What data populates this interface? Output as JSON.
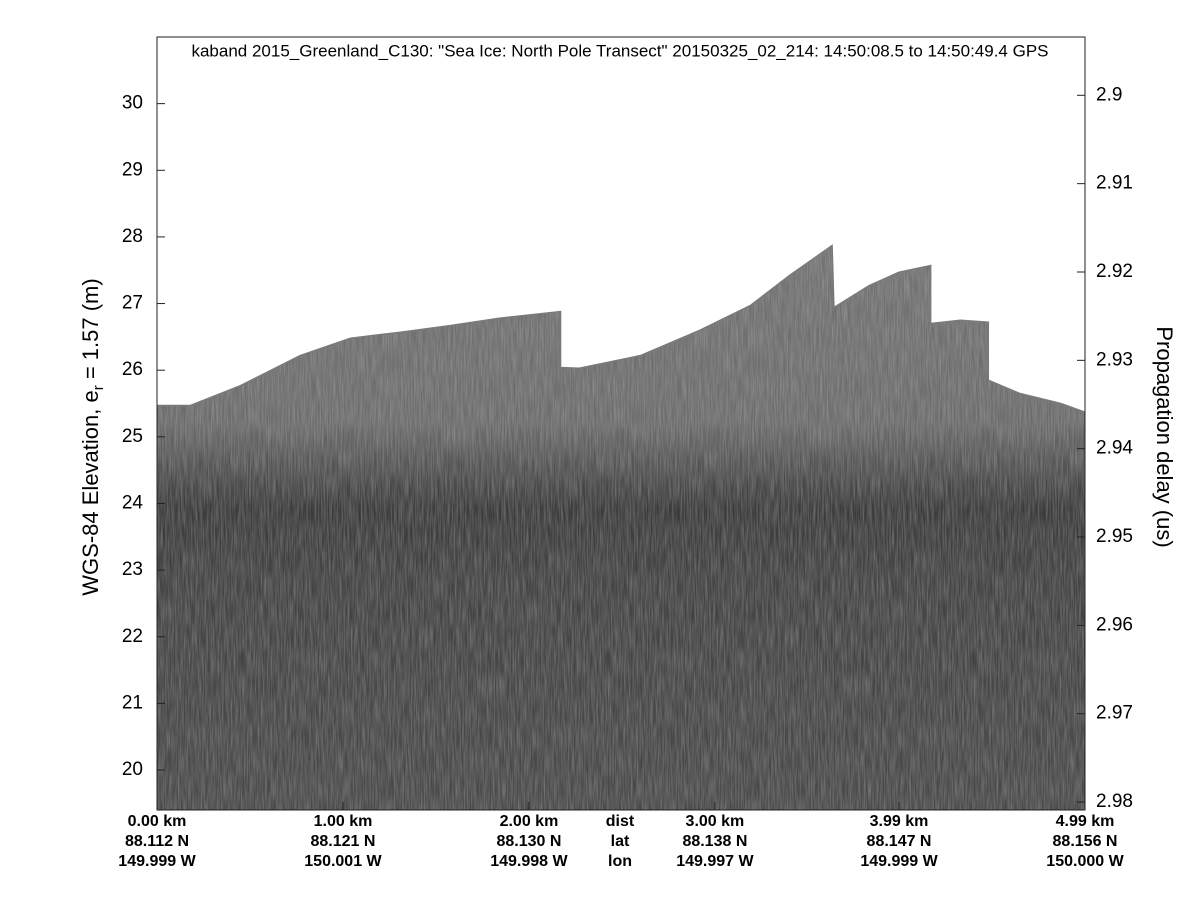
{
  "chart_data": {
    "type": "area",
    "title": "kaband 2015_Greenland_C130: \"Sea Ice: North Pole Transect\"  20150325_02_214: 14:50:08.5 to 14:50:49.4 GPS",
    "ylabel": {
      "text_before": "WGS-84 Elevation, e",
      "subscript": "r",
      "text_after": " = 1.57 (m)"
    },
    "y2label": "Propagation delay (us)",
    "xlim": [
      0,
      4.99
    ],
    "xticks": [
      {
        "value": 0,
        "label": "0.00 km"
      },
      {
        "value": 1,
        "label": "1.00 km"
      },
      {
        "value": 2,
        "label": "2.00 km"
      },
      {
        "value": 3,
        "label": "3.00 km"
      },
      {
        "value": 3.99,
        "label": "3.99 km"
      },
      {
        "value": 4.99,
        "label": "4.99 km"
      }
    ],
    "xtick_lat": [
      "88.112 N",
      "88.121 N",
      "88.130 N",
      "88.138 N",
      "88.147 N",
      "88.156 N"
    ],
    "xtick_lon": [
      "149.999 W",
      "150.001 W",
      "149.998 W",
      "149.997 W",
      "149.999 W",
      "150.000 W"
    ],
    "xtick_row_labels": [
      "dist",
      "lat",
      "lon"
    ],
    "ylim": [
      19.4,
      31.0
    ],
    "yticks": [
      20,
      21,
      22,
      23,
      24,
      25,
      26,
      27,
      28,
      29,
      30
    ],
    "y2lim": [
      2.9809,
      2.8934
    ],
    "y2ticks": [
      2.9,
      2.91,
      2.92,
      2.93,
      2.94,
      2.95,
      2.96,
      2.97,
      2.98
    ],
    "series": [
      {
        "color": "#7a7a7a",
        "x": [
          0,
          0.18,
          0.45,
          0.77,
          1.04,
          1.31,
          1.58,
          1.84,
          2.17,
          2.17,
          2.27,
          2.6,
          2.92,
          3.19,
          3.4,
          3.63,
          3.64,
          3.83,
          3.99,
          4.16,
          4.16,
          4.32,
          4.47,
          4.47,
          4.64,
          4.86,
          4.99
        ],
        "values": [
          25.47,
          25.47,
          25.77,
          26.22,
          26.48,
          26.57,
          26.67,
          26.78,
          26.88,
          26.04,
          26.03,
          26.22,
          26.6,
          26.97,
          27.42,
          27.87,
          26.94,
          27.27,
          27.47,
          27.57,
          26.7,
          26.75,
          26.72,
          25.85,
          25.65,
          25.5,
          25.37
        ]
      }
    ]
  }
}
